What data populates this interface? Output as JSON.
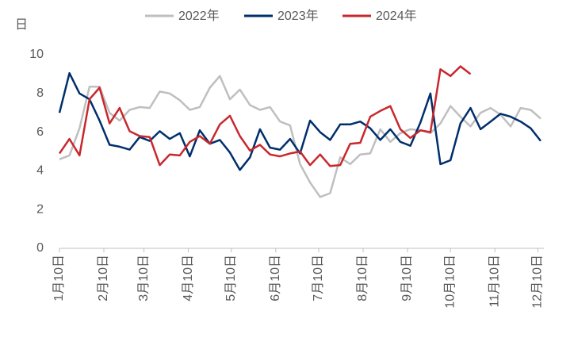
{
  "chart_data": {
    "type": "line",
    "ylabel": "日",
    "x": [
      10,
      17,
      24,
      31,
      38,
      45,
      52,
      59,
      66,
      73,
      80,
      87,
      94,
      101,
      108,
      115,
      122,
      129,
      136,
      143,
      150,
      157,
      164,
      171,
      178,
      185,
      192,
      199,
      206,
      213,
      220,
      227,
      234,
      241,
      248,
      255,
      262,
      269,
      276,
      283,
      290,
      297,
      304,
      311,
      318,
      325,
      332,
      339,
      346
    ],
    "xlim": [
      10,
      346
    ],
    "xticks": [
      {
        "value": 10,
        "label": "1月10日"
      },
      {
        "value": 41,
        "label": "2月10日"
      },
      {
        "value": 69,
        "label": "3月10日"
      },
      {
        "value": 100,
        "label": "4月10日"
      },
      {
        "value": 130,
        "label": "5月10日"
      },
      {
        "value": 161,
        "label": "6月10日"
      },
      {
        "value": 191,
        "label": "7月10日"
      },
      {
        "value": 222,
        "label": "8月10日"
      },
      {
        "value": 253,
        "label": "9月10日"
      },
      {
        "value": 283,
        "label": "10月10日"
      },
      {
        "value": 314,
        "label": "11月10日"
      },
      {
        "value": 344,
        "label": "12月10日"
      }
    ],
    "ylim": [
      0,
      10
    ],
    "yticks": [
      0,
      2,
      4,
      6,
      8,
      10
    ],
    "grid": false,
    "legend": "top",
    "series": [
      {
        "name": "2022年",
        "color": "#bfbfbf",
        "values": [
          4.6,
          4.8,
          6.2,
          8.35,
          8.35,
          7.0,
          6.6,
          7.15,
          7.3,
          7.25,
          8.1,
          8.0,
          7.65,
          7.15,
          7.3,
          8.3,
          8.9,
          7.7,
          8.2,
          7.4,
          7.15,
          7.3,
          6.55,
          6.35,
          4.35,
          3.4,
          2.65,
          2.85,
          4.7,
          4.35,
          4.85,
          4.9,
          6.15,
          5.5,
          5.95,
          6.15,
          6.1,
          5.95,
          6.45,
          7.35,
          6.8,
          6.3,
          7.0,
          7.25,
          6.9,
          6.3,
          7.25,
          7.15,
          6.7
        ]
      },
      {
        "name": "2023年",
        "color": "#002f6c",
        "values": [
          7.0,
          9.05,
          8.0,
          7.7,
          6.6,
          5.35,
          5.25,
          5.1,
          5.75,
          5.55,
          6.05,
          5.65,
          5.95,
          4.75,
          6.1,
          5.4,
          5.6,
          4.95,
          4.05,
          4.7,
          6.15,
          5.2,
          5.1,
          5.65,
          4.9,
          6.6,
          6.0,
          5.6,
          6.4,
          6.4,
          6.55,
          6.2,
          5.6,
          6.15,
          5.5,
          5.3,
          6.5,
          8.0,
          4.35,
          4.55,
          6.45,
          7.25,
          6.15,
          6.55,
          6.95,
          6.8,
          6.55,
          6.2,
          5.55
        ]
      },
      {
        "name": "2024年",
        "color": "#c8282d",
        "values": [
          4.9,
          5.65,
          4.8,
          7.7,
          8.3,
          6.45,
          7.25,
          6.05,
          5.8,
          5.75,
          4.3,
          4.85,
          4.8,
          5.5,
          5.8,
          5.4,
          6.4,
          6.85,
          5.8,
          5.05,
          5.35,
          4.85,
          4.75,
          4.9,
          5.0,
          4.3,
          4.85,
          4.25,
          4.3,
          5.4,
          5.45,
          6.8,
          7.1,
          7.35,
          6.15,
          5.7,
          6.1,
          6.0,
          9.25,
          8.9,
          9.4,
          9.0,
          null,
          null,
          null,
          null,
          null,
          null,
          null
        ]
      }
    ]
  }
}
